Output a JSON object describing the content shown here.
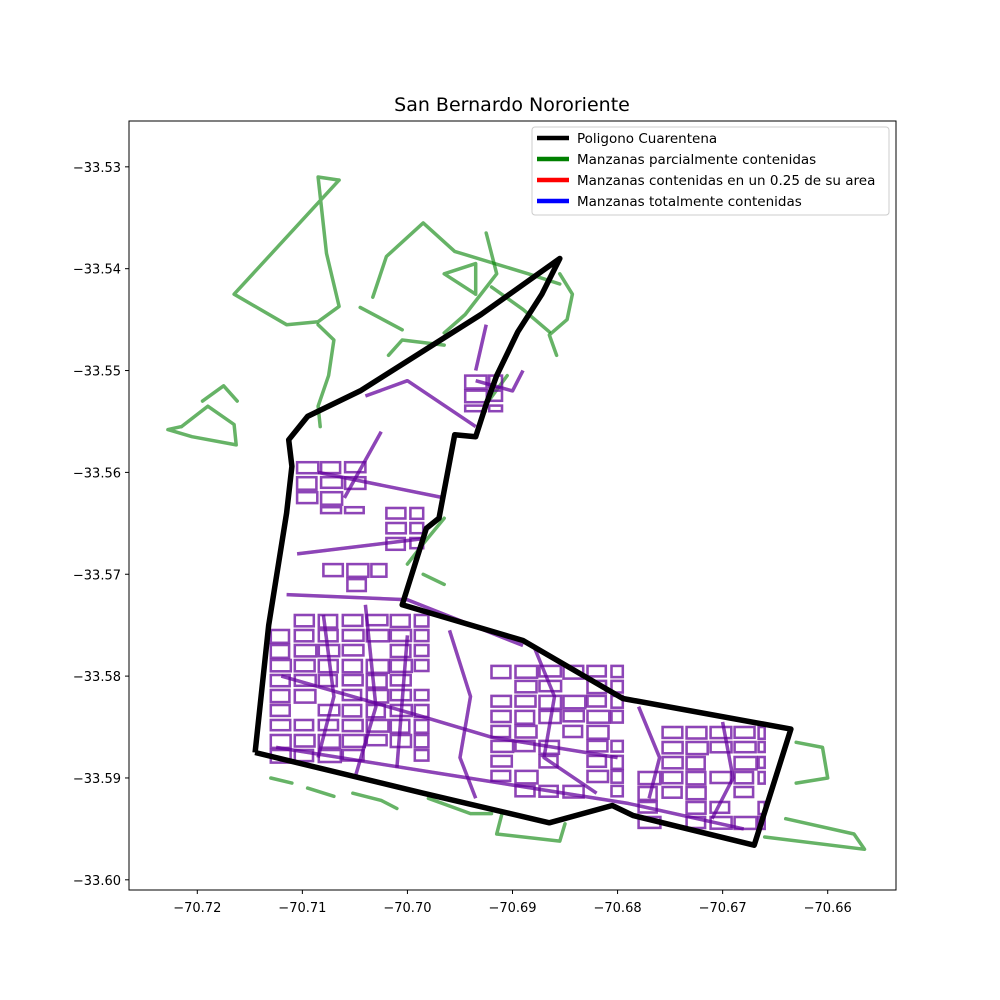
{
  "chart_data": {
    "type": "map",
    "title": "San Bernardo Nororiente",
    "xlabel": "",
    "ylabel": "",
    "xlim": [
      -70.7265,
      -70.6535
    ],
    "ylim": [
      -33.601,
      -33.5255
    ],
    "x_ticks": [
      {
        "value": -70.72,
        "label": "−70.72"
      },
      {
        "value": -70.71,
        "label": "−70.71"
      },
      {
        "value": -70.7,
        "label": "−70.70"
      },
      {
        "value": -70.69,
        "label": "−70.69"
      },
      {
        "value": -70.68,
        "label": "−70.68"
      },
      {
        "value": -70.67,
        "label": "−70.67"
      },
      {
        "value": -70.66,
        "label": "−70.66"
      }
    ],
    "y_ticks": [
      {
        "value": -33.53,
        "label": "−33.53"
      },
      {
        "value": -33.54,
        "label": "−33.54"
      },
      {
        "value": -33.55,
        "label": "−33.55"
      },
      {
        "value": -33.56,
        "label": "−33.56"
      },
      {
        "value": -33.57,
        "label": "−33.57"
      },
      {
        "value": -33.58,
        "label": "−33.58"
      },
      {
        "value": -33.59,
        "label": "−33.59"
      },
      {
        "value": -33.6,
        "label": "−33.60"
      }
    ],
    "legend": {
      "placement": "upper-right",
      "entries": [
        {
          "label": "Poligono Cuarentena",
          "color": "#000000"
        },
        {
          "label": "Manzanas parcialmente contenidas",
          "color": "#008000"
        },
        {
          "label": "Manzanas contenidas en un 0.25 de su area",
          "color": "#ff0000"
        },
        {
          "label": "Manzanas totalmente contenidas",
          "color": "#0000ff"
        }
      ]
    },
    "quarantine_polygon": [
      [
        -70.7145,
        -33.5875
      ],
      [
        -70.7132,
        -33.575
      ],
      [
        -70.7115,
        -33.564
      ],
      [
        -70.711,
        -33.5594
      ],
      [
        -70.7113,
        -33.5568
      ],
      [
        -70.7095,
        -33.5545
      ],
      [
        -70.7045,
        -33.552
      ],
      [
        -70.693,
        -33.5445
      ],
      [
        -70.6855,
        -33.539
      ],
      [
        -70.6872,
        -33.5425
      ],
      [
        -70.6895,
        -33.5462
      ],
      [
        -70.6915,
        -33.5505
      ],
      [
        -70.6925,
        -33.5533
      ],
      [
        -70.6935,
        -33.5565
      ],
      [
        -70.6955,
        -33.5563
      ],
      [
        -70.697,
        -33.5645
      ],
      [
        -70.6982,
        -33.5655
      ],
      [
        -70.7005,
        -33.573
      ],
      [
        -70.689,
        -33.5765
      ],
      [
        -70.6795,
        -33.5822
      ],
      [
        -70.6635,
        -33.5852
      ],
      [
        -70.667,
        -33.5966
      ],
      [
        -70.6785,
        -33.5937
      ],
      [
        -70.6805,
        -33.5927
      ],
      [
        -70.6865,
        -33.5944
      ],
      [
        -70.6985,
        -33.5915
      ],
      [
        -70.7145,
        -33.5875
      ]
    ],
    "partially_contained_blocks": [
      [
        [
          -70.7065,
          -33.5313
        ],
        [
          -70.7085,
          -33.531
        ],
        [
          -70.7077,
          -33.5385
        ],
        [
          -70.7065,
          -33.5437
        ],
        [
          -70.7085,
          -33.5452
        ],
        [
          -70.7115,
          -33.5455
        ],
        [
          -70.7165,
          -33.5425
        ],
        [
          -70.7065,
          -33.5313
        ]
      ],
      [
        [
          -70.7045,
          -33.5438
        ],
        [
          -70.7005,
          -33.546
        ]
      ],
      [
        [
          -70.7033,
          -33.5428
        ],
        [
          -70.702,
          -33.5388
        ],
        [
          -70.6985,
          -33.5355
        ],
        [
          -70.6955,
          -33.5383
        ],
        [
          -70.6885,
          -33.5405
        ],
        [
          -70.6855,
          -33.5415
        ]
      ],
      [
        [
          -70.6965,
          -33.5463
        ],
        [
          -70.6945,
          -33.5445
        ],
        [
          -70.6915,
          -33.5405
        ],
        [
          -70.6925,
          -33.5365
        ]
      ],
      [
        [
          -70.6965,
          -33.5475
        ],
        [
          -70.7005,
          -33.547
        ],
        [
          -70.7018,
          -33.5485
        ]
      ],
      [
        [
          -70.7085,
          -33.5455
        ],
        [
          -70.707,
          -33.547
        ],
        [
          -70.7075,
          -33.5505
        ],
        [
          -70.7085,
          -33.5535
        ],
        [
          -70.7083,
          -33.5555
        ]
      ],
      [
        [
          -70.6935,
          -33.5425
        ],
        [
          -70.6965,
          -33.5405
        ],
        [
          -70.6935,
          -33.5395
        ],
        [
          -70.6935,
          -33.5425
        ]
      ],
      [
        [
          -70.692,
          -33.5418
        ],
        [
          -70.689,
          -33.544
        ],
        [
          -70.6865,
          -33.5462
        ]
      ],
      [
        [
          -70.7215,
          -33.5555
        ],
        [
          -70.719,
          -33.5535
        ],
        [
          -70.7165,
          -33.5553
        ],
        [
          -70.7163,
          -33.5573
        ],
        [
          -70.7205,
          -33.5565
        ],
        [
          -70.7228,
          -33.5558
        ],
        [
          -70.7215,
          -33.5555
        ]
      ],
      [
        [
          -70.7195,
          -33.553
        ],
        [
          -70.7175,
          -33.5515
        ],
        [
          -70.7162,
          -33.553
        ]
      ],
      [
        [
          -70.6855,
          -33.5405
        ],
        [
          -70.6843,
          -33.5425
        ],
        [
          -70.6848,
          -33.545
        ],
        [
          -70.6865,
          -33.5465
        ],
        [
          -70.6858,
          -33.5485
        ]
      ],
      [
        [
          -70.7052,
          -33.5915
        ],
        [
          -70.7025,
          -33.5922
        ],
        [
          -70.701,
          -33.593
        ]
      ],
      [
        [
          -70.7095,
          -33.591
        ],
        [
          -70.707,
          -33.5918
        ]
      ],
      [
        [
          -70.713,
          -33.59
        ],
        [
          -70.711,
          -33.5905
        ]
      ],
      [
        [
          -70.698,
          -33.592
        ],
        [
          -70.694,
          -33.5935
        ],
        [
          -70.692,
          -33.5935
        ]
      ],
      [
        [
          -70.691,
          -33.5935
        ],
        [
          -70.6915,
          -33.5955
        ],
        [
          -70.6855,
          -33.5962
        ],
        [
          -70.685,
          -33.5945
        ]
      ],
      [
        [
          -70.663,
          -33.5865
        ],
        [
          -70.6605,
          -33.587
        ],
        [
          -70.66,
          -33.59
        ],
        [
          -70.663,
          -33.5905
        ]
      ],
      [
        [
          -70.664,
          -33.594
        ],
        [
          -70.6575,
          -33.5955
        ],
        [
          -70.6565,
          -33.597
        ],
        [
          -70.666,
          -33.5958
        ]
      ],
      [
        [
          -70.6965,
          -33.5645
        ],
        [
          -70.6985,
          -33.567
        ],
        [
          -70.7,
          -33.569
        ]
      ],
      [
        [
          -70.6985,
          -33.57
        ],
        [
          -70.6965,
          -33.571
        ]
      ],
      [
        [
          -70.6925,
          -33.5533
        ],
        [
          -70.6905,
          -33.5505
        ]
      ]
    ],
    "fully_contained_outlines": [
      [
        [
          -70.7125,
          -33.587
        ],
        [
          -70.679,
          -33.5925
        ],
        [
          -70.668,
          -33.595
        ]
      ],
      [
        [
          -70.712,
          -33.58
        ],
        [
          -70.6985,
          -33.584
        ],
        [
          -70.692,
          -33.586
        ],
        [
          -70.68,
          -33.588
        ]
      ],
      [
        [
          -70.7115,
          -33.572
        ],
        [
          -70.7,
          -33.5725
        ],
        [
          -70.689,
          -33.577
        ]
      ],
      [
        [
          -70.7105,
          -33.568
        ],
        [
          -70.6985,
          -33.5665
        ]
      ],
      [
        [
          -70.7085,
          -33.56
        ],
        [
          -70.6965,
          -33.5625
        ]
      ],
      [
        [
          -70.706,
          -33.5625
        ],
        [
          -70.7025,
          -33.556
        ]
      ],
      [
        [
          -70.704,
          -33.5525
        ],
        [
          -70.7,
          -33.551
        ],
        [
          -70.6935,
          -33.5555
        ]
      ],
      [
        [
          -70.6935,
          -33.551
        ],
        [
          -70.69,
          -33.552
        ],
        [
          -70.689,
          -33.55
        ]
      ],
      [
        [
          -70.6935,
          -33.55
        ],
        [
          -70.6925,
          -33.5455
        ]
      ],
      [
        [
          -70.688,
          -33.577
        ],
        [
          -70.686,
          -33.582
        ],
        [
          -70.687,
          -33.588
        ],
        [
          -70.682,
          -33.5915
        ]
      ],
      [
        [
          -70.678,
          -33.583
        ],
        [
          -70.676,
          -33.588
        ],
        [
          -70.677,
          -33.592
        ]
      ],
      [
        [
          -70.67,
          -33.5845
        ],
        [
          -70.669,
          -33.59
        ],
        [
          -70.671,
          -33.594
        ]
      ],
      [
        [
          -70.696,
          -33.5755
        ],
        [
          -70.694,
          -33.582
        ],
        [
          -70.695,
          -33.588
        ],
        [
          -70.6935,
          -33.592
        ]
      ],
      [
        [
          -70.708,
          -33.574
        ],
        [
          -70.707,
          -33.582
        ],
        [
          -70.7085,
          -33.588
        ]
      ],
      [
        [
          -70.704,
          -33.573
        ],
        [
          -70.703,
          -33.583
        ],
        [
          -70.705,
          -33.59
        ]
      ],
      [
        [
          -70.7,
          -33.576
        ],
        [
          -70.701,
          -33.589
        ]
      ]
    ],
    "dense_block_regions": [
      {
        "xmin": -70.713,
        "xmax": -70.698,
        "ymin": -33.5885,
        "ymax": -33.574
      },
      {
        "xmin": -70.692,
        "xmax": -70.6795,
        "ymin": -33.5925,
        "ymax": -33.579
      },
      {
        "xmin": -70.678,
        "xmax": -70.666,
        "ymin": -33.595,
        "ymax": -33.585
      },
      {
        "xmin": -70.7105,
        "xmax": -70.704,
        "ymin": -33.564,
        "ymax": -33.559
      },
      {
        "xmin": -70.702,
        "xmax": -70.6985,
        "ymin": -33.568,
        "ymax": -33.5635
      },
      {
        "xmin": -70.6945,
        "xmax": -70.691,
        "ymin": -33.554,
        "ymax": -33.5505
      },
      {
        "xmin": -70.708,
        "xmax": -70.702,
        "ymin": -33.572,
        "ymax": -33.569
      }
    ]
  }
}
